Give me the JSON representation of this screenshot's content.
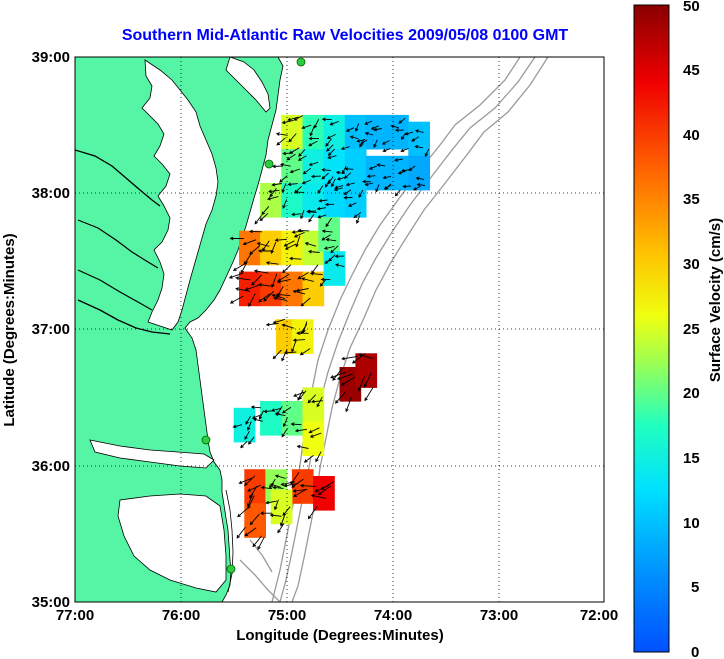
{
  "title": "Southern Mid-Atlantic Raw Velocities 2009/05/08 0100 GMT",
  "xlabel": "Longitude (Degrees:Minutes)",
  "ylabel": "Latitude (Degrees:Minutes)",
  "colorbar_label": "Surface Velocity (cm/s)",
  "x_ticks": [
    "77:00",
    "76:00",
    "75:00",
    "74:00",
    "73:00",
    "72:00"
  ],
  "y_ticks": [
    "39:00",
    "38:00",
    "37:00",
    "36:00",
    "35:00"
  ],
  "colorbar_ticks": [
    "50",
    "45",
    "40",
    "35",
    "30",
    "25",
    "20",
    "15",
    "10",
    "5",
    "0"
  ],
  "chart_data": {
    "type": "heatmap",
    "xlim": [
      -77,
      -72
    ],
    "ylim": [
      35,
      39
    ],
    "clim": [
      0,
      50
    ],
    "colormap": "jet",
    "grid": true,
    "land_color": "#55f5a5",
    "coastline_color": "#000000",
    "bathymetry_color": "#9a9a9a",
    "vector_color": "#000000",
    "cells": [
      {
        "lon": -74.95,
        "lat": 38.45,
        "v": 25
      },
      {
        "lon": -74.75,
        "lat": 38.45,
        "v": 18
      },
      {
        "lon": -74.55,
        "lat": 38.45,
        "v": 15
      },
      {
        "lon": -74.35,
        "lat": 38.45,
        "v": 10
      },
      {
        "lon": -74.15,
        "lat": 38.45,
        "v": 9
      },
      {
        "lon": -73.95,
        "lat": 38.45,
        "v": 9
      },
      {
        "lon": -73.75,
        "lat": 38.4,
        "v": 10
      },
      {
        "lon": -74.95,
        "lat": 38.2,
        "v": 20
      },
      {
        "lon": -74.75,
        "lat": 38.2,
        "v": 15
      },
      {
        "lon": -74.55,
        "lat": 38.2,
        "v": 13
      },
      {
        "lon": -74.35,
        "lat": 38.2,
        "v": 11
      },
      {
        "lon": -74.15,
        "lat": 38.15,
        "v": 9
      },
      {
        "lon": -73.95,
        "lat": 38.15,
        "v": 9
      },
      {
        "lon": -73.75,
        "lat": 38.15,
        "v": 8
      },
      {
        "lon": -75.15,
        "lat": 37.95,
        "v": 23
      },
      {
        "lon": -74.95,
        "lat": 37.95,
        "v": 17
      },
      {
        "lon": -74.75,
        "lat": 37.95,
        "v": 14
      },
      {
        "lon": -74.55,
        "lat": 37.95,
        "v": 12
      },
      {
        "lon": -74.35,
        "lat": 37.95,
        "v": 11
      },
      {
        "lon": -75.35,
        "lat": 37.6,
        "v": 36
      },
      {
        "lon": -75.15,
        "lat": 37.6,
        "v": 30
      },
      {
        "lon": -74.95,
        "lat": 37.6,
        "v": 27
      },
      {
        "lon": -74.75,
        "lat": 37.6,
        "v": 24
      },
      {
        "lon": -74.6,
        "lat": 37.7,
        "v": 20
      },
      {
        "lon": -75.35,
        "lat": 37.3,
        "v": 42
      },
      {
        "lon": -75.15,
        "lat": 37.3,
        "v": 40
      },
      {
        "lon": -74.95,
        "lat": 37.3,
        "v": 36
      },
      {
        "lon": -74.75,
        "lat": 37.3,
        "v": 30
      },
      {
        "lon": -74.55,
        "lat": 37.45,
        "v": 14
      },
      {
        "lon": -75.0,
        "lat": 36.95,
        "v": 30
      },
      {
        "lon": -74.85,
        "lat": 36.95,
        "v": 27
      },
      {
        "lon": -74.4,
        "lat": 36.6,
        "v": 49
      },
      {
        "lon": -74.25,
        "lat": 36.7,
        "v": 48
      },
      {
        "lon": -74.95,
        "lat": 36.35,
        "v": 20
      },
      {
        "lon": -75.15,
        "lat": 36.35,
        "v": 17
      },
      {
        "lon": -74.75,
        "lat": 36.45,
        "v": 25
      },
      {
        "lon": -74.75,
        "lat": 36.2,
        "v": 26
      },
      {
        "lon": -75.4,
        "lat": 36.3,
        "v": 15
      },
      {
        "lon": -75.3,
        "lat": 35.85,
        "v": 40
      },
      {
        "lon": -75.1,
        "lat": 35.85,
        "v": 22
      },
      {
        "lon": -74.85,
        "lat": 35.85,
        "v": 40
      },
      {
        "lon": -74.65,
        "lat": 35.8,
        "v": 44
      },
      {
        "lon": -75.3,
        "lat": 35.6,
        "v": 38
      },
      {
        "lon": -75.05,
        "lat": 35.7,
        "v": 25
      }
    ]
  }
}
